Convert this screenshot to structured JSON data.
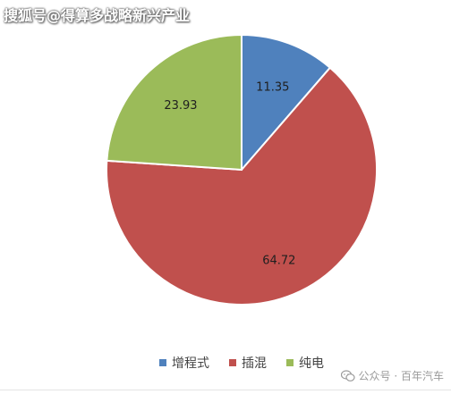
{
  "watermark_top": "搜狐号@得算多战略新兴产业",
  "watermark_bottom": {
    "icon": "wechat-icon",
    "text": "公众号 · 百年汽车"
  },
  "chart_data": {
    "type": "pie",
    "title": "",
    "categories": [
      "增程式",
      "插混",
      "纯电"
    ],
    "values": [
      11.35,
      64.72,
      23.93
    ],
    "labels": [
      "11.35",
      "64.72",
      "23.93"
    ],
    "colors": [
      "#4f81bd",
      "#c0504d",
      "#9bbb59"
    ],
    "legend_position": "bottom",
    "start_angle_deg": 0,
    "direction": "clockwise"
  }
}
